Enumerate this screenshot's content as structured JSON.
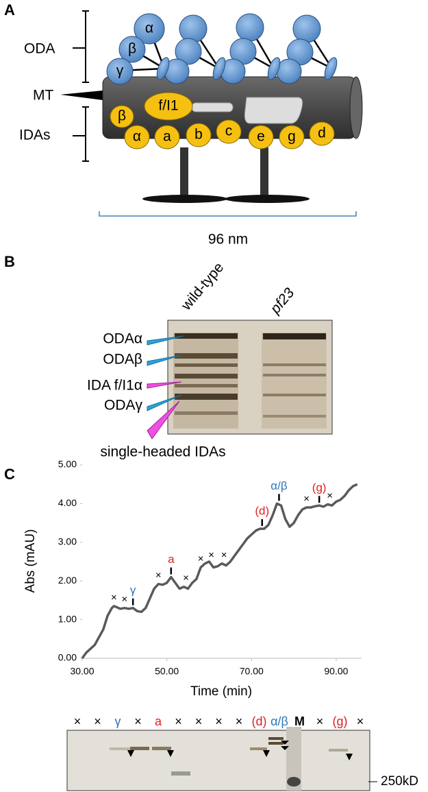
{
  "panel_a": {
    "letter": "A",
    "oda": "ODA",
    "oda_heads": [
      "α",
      "β",
      "γ"
    ],
    "mt": "MT",
    "idas": "IDAs",
    "f_i1": "f/I1",
    "f_i1_heads": [
      "β",
      "α"
    ],
    "single_heads": [
      "a",
      "b",
      "c",
      "e",
      "g",
      "d"
    ],
    "scale": "96 nm"
  },
  "panel_b": {
    "letter": "B",
    "lanes": [
      "wild-type",
      "pf23"
    ],
    "bands": [
      "ODAα",
      "ODAβ",
      "IDA f/I1α",
      "ODAγ"
    ],
    "bottom_label": "single-headed IDAs"
  },
  "panel_c": {
    "letter": "C",
    "gel_lanes": [
      {
        "label": "×",
        "color": "#000000"
      },
      {
        "label": "×",
        "color": "#000000"
      },
      {
        "label": "γ",
        "color": "#2e75b6"
      },
      {
        "label": "×",
        "color": "#000000"
      },
      {
        "label": "a",
        "color": "#e02020"
      },
      {
        "label": "×",
        "color": "#000000"
      },
      {
        "label": "×",
        "color": "#000000"
      },
      {
        "label": "×",
        "color": "#000000"
      },
      {
        "label": "×",
        "color": "#000000"
      },
      {
        "label": "(d)",
        "color": "#e02020"
      },
      {
        "label": "α/β",
        "color": "#2e75b6"
      },
      {
        "label": "M",
        "color": "#000000"
      },
      {
        "label": "×",
        "color": "#000000"
      },
      {
        "label": "(g)",
        "color": "#e02020"
      },
      {
        "label": "×",
        "color": "#000000"
      }
    ],
    "marker": "250kD"
  },
  "chart_data": {
    "type": "line",
    "x_label": "Time (min)",
    "y_label": "Abs (mAU)",
    "color": "#5a5a5a",
    "x": [
      30,
      31,
      32,
      33,
      34,
      35,
      36,
      37,
      37.5,
      38,
      39,
      40,
      41,
      42,
      43,
      44,
      45,
      46,
      47,
      48,
      49,
      50,
      51,
      52,
      53,
      54,
      55,
      56,
      57,
      58,
      59,
      60,
      61,
      62,
      63,
      64,
      65,
      66,
      67,
      68,
      69,
      70,
      71,
      72,
      73,
      74,
      75,
      76,
      77,
      78,
      79,
      80,
      81,
      82,
      83,
      84,
      85,
      86,
      87,
      88,
      89,
      90,
      91,
      92,
      93,
      94,
      95
    ],
    "values": [
      0,
      0.15,
      0.25,
      0.35,
      0.55,
      0.75,
      1.1,
      1.3,
      1.35,
      1.33,
      1.28,
      1.3,
      1.28,
      1.3,
      1.22,
      1.2,
      1.3,
      1.55,
      1.8,
      1.92,
      1.9,
      1.95,
      2.1,
      1.95,
      1.8,
      1.85,
      1.8,
      1.95,
      2.05,
      2.35,
      2.45,
      2.5,
      2.35,
      2.38,
      2.45,
      2.4,
      2.5,
      2.65,
      2.8,
      2.95,
      3.1,
      3.2,
      3.3,
      3.35,
      3.35,
      3.45,
      3.7,
      4.0,
      3.95,
      3.6,
      3.4,
      3.5,
      3.7,
      3.85,
      3.9,
      3.9,
      3.93,
      3.95,
      3.92,
      3.98,
      3.95,
      4.05,
      4.1,
      4.2,
      4.35,
      4.45,
      4.5
    ],
    "xlim": [
      30,
      96
    ],
    "ylim": [
      0,
      5
    ],
    "xticks": [
      {
        "value": 30,
        "label": "30.00"
      },
      {
        "value": 50,
        "label": "50.00"
      },
      {
        "value": 70,
        "label": "70.00"
      },
      {
        "value": 90,
        "label": "90.00"
      }
    ],
    "yticks": [
      {
        "value": 0,
        "label": "0.00"
      },
      {
        "value": 1,
        "label": "1.00"
      },
      {
        "value": 2,
        "label": "2.00"
      },
      {
        "value": 3,
        "label": "3.00"
      },
      {
        "value": 4,
        "label": "4.00"
      },
      {
        "value": 5,
        "label": "5.00"
      }
    ],
    "annotations": [
      {
        "text": "×",
        "x": 37.5,
        "y": 1.35,
        "color": "#000000",
        "tick": false
      },
      {
        "text": "×",
        "x": 40,
        "y": 1.3,
        "color": "#000000",
        "tick": false
      },
      {
        "text": "γ",
        "x": 42,
        "y": 1.3,
        "color": "#2e75b6",
        "tick": true
      },
      {
        "text": "×",
        "x": 48,
        "y": 1.92,
        "color": "#000000",
        "tick": false
      },
      {
        "text": "a",
        "x": 51,
        "y": 2.1,
        "color": "#e02020",
        "tick": true
      },
      {
        "text": "×",
        "x": 54.5,
        "y": 1.85,
        "color": "#000000",
        "tick": false
      },
      {
        "text": "×",
        "x": 58,
        "y": 2.35,
        "color": "#000000",
        "tick": false
      },
      {
        "text": "×",
        "x": 60.5,
        "y": 2.45,
        "color": "#000000",
        "tick": false
      },
      {
        "text": "×",
        "x": 63.5,
        "y": 2.45,
        "color": "#000000",
        "tick": false
      },
      {
        "text": "(d)",
        "x": 72.5,
        "y": 3.35,
        "color": "#e02020",
        "tick": true
      },
      {
        "text": "α/β",
        "x": 76.5,
        "y": 4.0,
        "color": "#2e75b6",
        "tick": true
      },
      {
        "text": "×",
        "x": 83,
        "y": 3.9,
        "color": "#000000",
        "tick": false
      },
      {
        "text": "(g)",
        "x": 86,
        "y": 3.95,
        "color": "#e02020",
        "tick": true
      },
      {
        "text": "×",
        "x": 88.5,
        "y": 3.98,
        "color": "#000000",
        "tick": false
      }
    ]
  }
}
